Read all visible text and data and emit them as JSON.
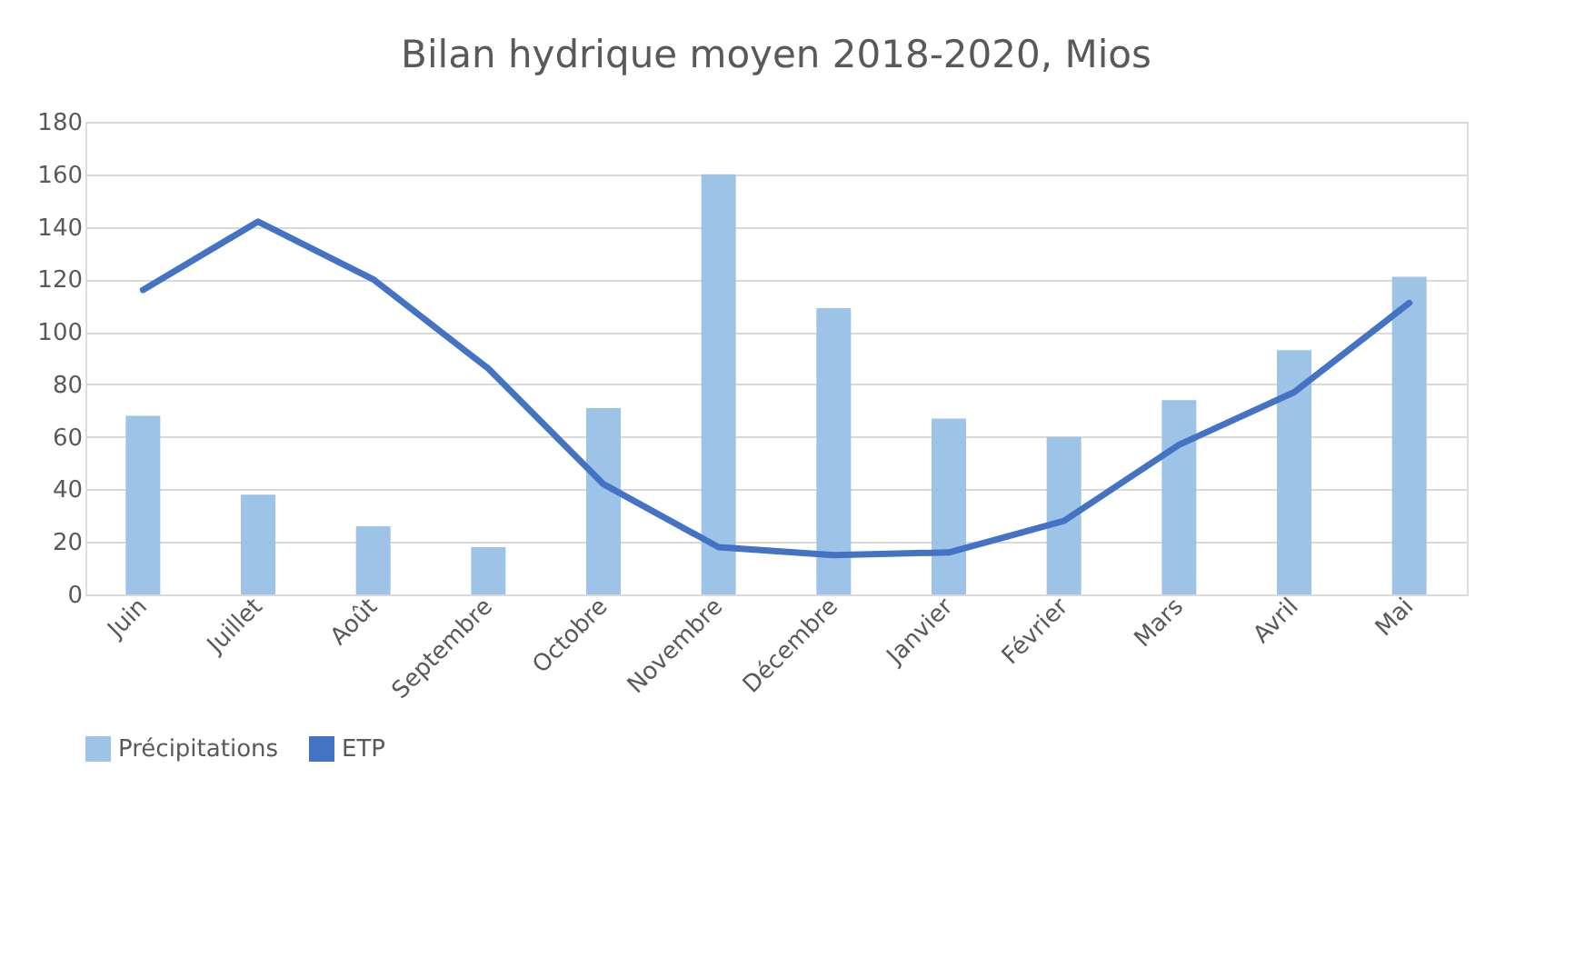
{
  "chart_data": {
    "type": "bar",
    "title": "Bilan hydrique moyen 2018-2020, Mios",
    "categories": [
      "Juin",
      "Juillet",
      "Août",
      "Septembre",
      "Octobre",
      "Novembre",
      "Décembre",
      "Janvier",
      "Février",
      "Mars",
      "Avril",
      "Mai"
    ],
    "series": [
      {
        "name": "Précipitations",
        "type": "bar",
        "color": "#9dc3e6",
        "values": [
          68,
          38,
          26,
          18,
          71,
          160,
          109,
          67,
          60,
          74,
          93,
          121
        ]
      },
      {
        "name": "ETP",
        "type": "line",
        "color": "#4472c4",
        "values": [
          116,
          142,
          120,
          86,
          42,
          18,
          15,
          16,
          28,
          57,
          77,
          111
        ]
      }
    ],
    "ylim": [
      0,
      180
    ],
    "yticks": [
      0,
      20,
      40,
      60,
      80,
      100,
      120,
      140,
      160,
      180
    ],
    "grid": "y",
    "legend": "bottom"
  }
}
